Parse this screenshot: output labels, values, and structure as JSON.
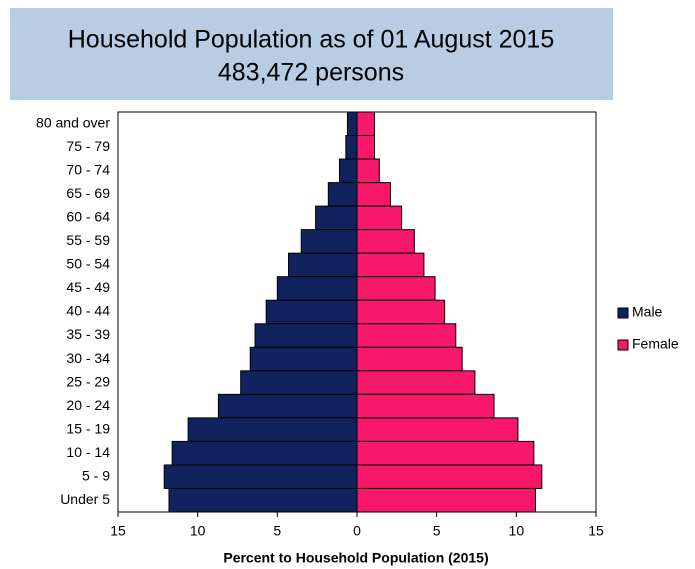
{
  "chart_data": {
    "type": "pyramid",
    "title": "Household Population as of 01 August 2015",
    "subtitle": "483,472 persons",
    "x_label": "Percent to Household Population (2015)",
    "categories": [
      "80 and over",
      "75 - 79",
      "70 - 74",
      "65 - 69",
      "60 - 64",
      "55 - 59",
      "50 - 54",
      "45 - 49",
      "40 - 44",
      "35 - 39",
      "30 - 34",
      "25 - 29",
      "20 - 24",
      "15 - 19",
      "10 - 14",
      "5 -  9",
      "Under 5"
    ],
    "series": [
      {
        "name": "Male",
        "color": "#10235e",
        "values": [
          -0.6,
          -0.7,
          -1.1,
          -1.8,
          -2.6,
          -3.5,
          -4.3,
          -5.0,
          -5.7,
          -6.4,
          -6.7,
          -7.3,
          -8.7,
          -10.6,
          -11.6,
          -12.1,
          -11.8
        ]
      },
      {
        "name": "Female",
        "color": "#f7176b",
        "values": [
          1.1,
          1.1,
          1.4,
          2.1,
          2.8,
          3.6,
          4.2,
          4.9,
          5.5,
          6.2,
          6.6,
          7.4,
          8.6,
          10.1,
          11.1,
          11.6,
          11.2
        ]
      }
    ],
    "xlim": [
      -15,
      15
    ],
    "xticks": [
      {
        "value": -15,
        "label": "15"
      },
      {
        "value": -10,
        "label": "10"
      },
      {
        "value": -5,
        "label": "5"
      },
      0,
      5,
      10,
      15
    ],
    "legend": "right"
  }
}
